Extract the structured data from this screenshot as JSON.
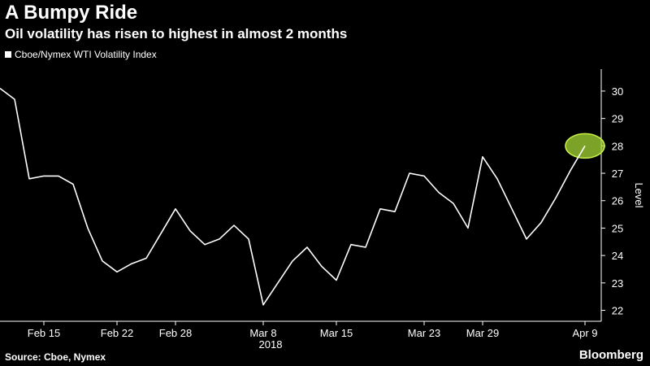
{
  "title": "A Bumpy Ride",
  "subtitle": "Oil volatility has risen to highest in almost 2 months",
  "legend_label": "Cboe/Nymex WTI Volatility Index",
  "source": "Source: Cboe, Nymex",
  "brand": "Bloomberg",
  "colors": {
    "background": "#000000",
    "line": "#ffffff",
    "highlight": "#a6d935"
  },
  "chart_data": {
    "type": "line",
    "title": "A Bumpy Ride",
    "subtitle": "Oil volatility has risen to highest in almost 2 months",
    "xlabel": "",
    "ylabel": "Level",
    "year_label": "2018",
    "ylim": [
      21.6,
      30.8
    ],
    "yticks": [
      22,
      23,
      24,
      25,
      26,
      27,
      28,
      29,
      30
    ],
    "xticks": [
      {
        "label": "Feb 15",
        "index": 3
      },
      {
        "label": "Feb 22",
        "index": 8
      },
      {
        "label": "Feb 28",
        "index": 12
      },
      {
        "label": "Mar 8",
        "index": 18
      },
      {
        "label": "Mar 15",
        "index": 23
      },
      {
        "label": "Mar 23",
        "index": 29
      },
      {
        "label": "Mar 29",
        "index": 33
      },
      {
        "label": "Apr 9",
        "index": 40
      }
    ],
    "series": [
      {
        "name": "Cboe/Nymex WTI Volatility Index",
        "values": [
          30.1,
          29.7,
          26.8,
          26.9,
          26.9,
          26.6,
          25.0,
          23.8,
          23.4,
          23.7,
          23.9,
          24.8,
          25.7,
          24.9,
          24.4,
          24.6,
          25.1,
          24.6,
          22.2,
          23.0,
          23.8,
          24.3,
          23.6,
          23.1,
          24.4,
          24.3,
          25.7,
          25.6,
          27.0,
          26.9,
          26.3,
          25.9,
          25.0,
          27.6,
          26.8,
          25.7,
          24.6,
          25.2,
          26.1,
          27.1,
          28.0
        ]
      }
    ],
    "highlight": {
      "index": 40,
      "value": 28.0
    },
    "grid": false,
    "legend_position": "top-left"
  }
}
